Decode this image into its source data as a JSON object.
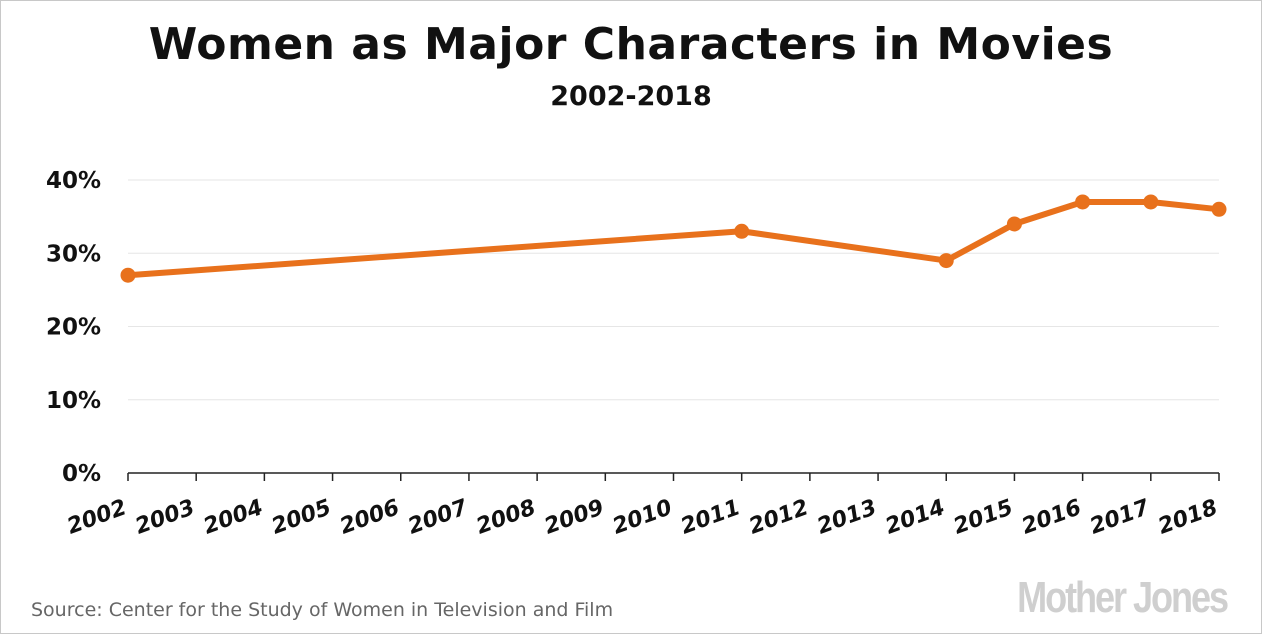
{
  "chart_data": {
    "type": "line",
    "title": "Women as Major Characters in Movies",
    "subtitle": "2002-2018",
    "x_ticks": [
      "2002",
      "2003",
      "2004",
      "2005",
      "2006",
      "2007",
      "2008",
      "2009",
      "2010",
      "2011",
      "2012",
      "2013",
      "2014",
      "2015",
      "2016",
      "2017",
      "2018"
    ],
    "y_ticks": [
      "0%",
      "10%",
      "20%",
      "30%",
      "40%"
    ],
    "ylim": [
      0,
      40
    ],
    "xlim": [
      2002,
      2018
    ],
    "grid": "horizontal",
    "series": [
      {
        "x": [
          2002,
          2011,
          2014,
          2015,
          2016,
          2017,
          2018
        ],
        "y": [
          27,
          33,
          29,
          34,
          37,
          37,
          36
        ]
      }
    ],
    "line_color": "#e8711c"
  },
  "source": "Source: Center for the Study of Women in Television and Film",
  "logo": "MotherJones"
}
